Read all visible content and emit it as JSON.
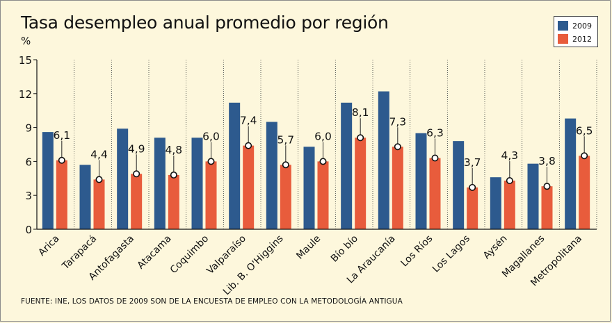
{
  "chart_data": {
    "type": "bar",
    "title": "Tasa desempleo anual promedio por región",
    "ylabel": "%",
    "xlabel": "",
    "ylim": [
      0,
      15
    ],
    "yticks": [
      "0",
      "3",
      "6",
      "9",
      "12",
      "15"
    ],
    "categories": [
      "Arica",
      "Tarapacá",
      "Antofagasta",
      "Atacama",
      "Coquimbo",
      "Valparaíso",
      "Lib. B. O'Higgins",
      "Maule",
      "Bío bío",
      "La Araucanía",
      "Los Ríos",
      "Los Lagos",
      "Aysén",
      "Magallanes",
      "Metropolitana"
    ],
    "series": [
      {
        "name": "2009",
        "color": "#2d5a8e",
        "values": [
          8.6,
          5.7,
          8.9,
          8.1,
          8.1,
          11.2,
          9.5,
          7.3,
          11.2,
          12.2,
          8.5,
          7.8,
          4.6,
          5.8,
          9.8
        ]
      },
      {
        "name": "2012",
        "color": "#e85c3c",
        "values": [
          6.1,
          4.4,
          4.9,
          4.8,
          6.0,
          7.4,
          5.7,
          6.0,
          8.1,
          7.3,
          6.3,
          3.7,
          4.3,
          3.8,
          6.5
        ]
      }
    ],
    "data_labels_2012": [
      "6,1",
      "4,4",
      "4,9",
      "4,8",
      "6,0",
      "7,4",
      "5,7",
      "6,0",
      "8,1",
      "7,3",
      "6,3",
      "3,7",
      "4,3",
      "3,8",
      "6,5"
    ],
    "grid": "vertical",
    "legend": "top-right"
  },
  "footer": {
    "source": "FUENTE: INE, LOS DATOS DE 2009 SON DE LA ENCUESTA DE EMPLEO CON LA METODOLOGÍA ANTIGUA"
  }
}
